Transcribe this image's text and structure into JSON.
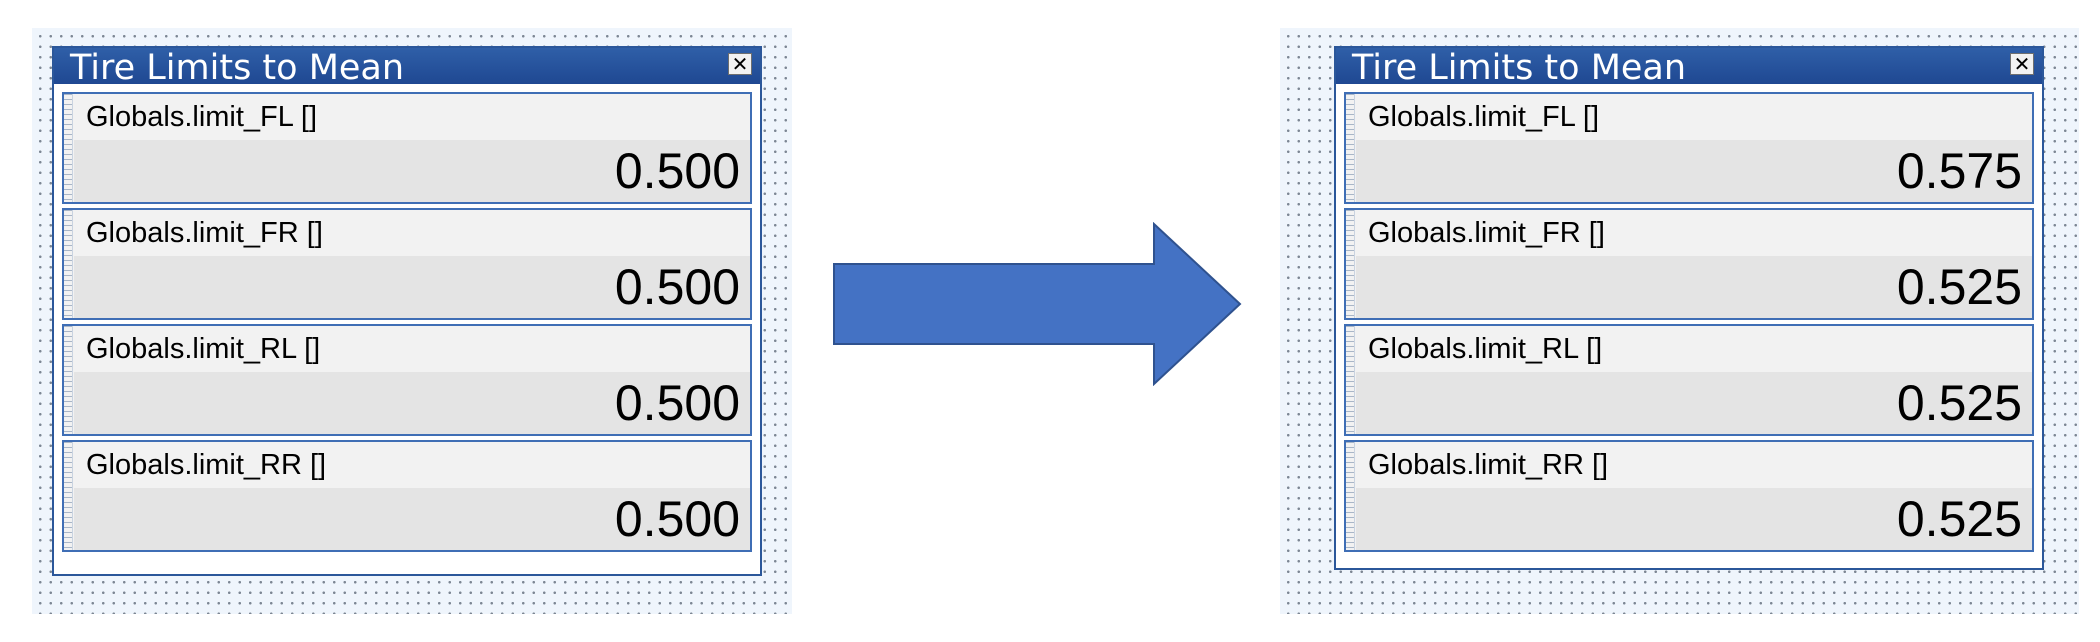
{
  "colors": {
    "titlebar": "#1f4892",
    "window_border": "#2b579a",
    "field_border": "#3f6eb5",
    "arrow_fill": "#4472c4",
    "arrow_stroke": "#2f528f",
    "canvas_bg": "#eff5fc"
  },
  "before_panel": {
    "title": "Tire Limits to Mean",
    "close_glyph": "✕",
    "fields": [
      {
        "label": "Globals.limit_FL []",
        "value": "0.500"
      },
      {
        "label": "Globals.limit_FR []",
        "value": "0.500"
      },
      {
        "label": "Globals.limit_RL []",
        "value": "0.500"
      },
      {
        "label": "Globals.limit_RR []",
        "value": "0.500"
      }
    ]
  },
  "after_panel": {
    "title": "Tire Limits to Mean",
    "close_glyph": "✕",
    "fields": [
      {
        "label": "Globals.limit_FL []",
        "value": "0.575"
      },
      {
        "label": "Globals.limit_FR []",
        "value": "0.525"
      },
      {
        "label": "Globals.limit_RL []",
        "value": "0.525"
      },
      {
        "label": "Globals.limit_RR []",
        "value": "0.525"
      }
    ]
  },
  "arrow": {
    "icon": "right-arrow-icon"
  }
}
